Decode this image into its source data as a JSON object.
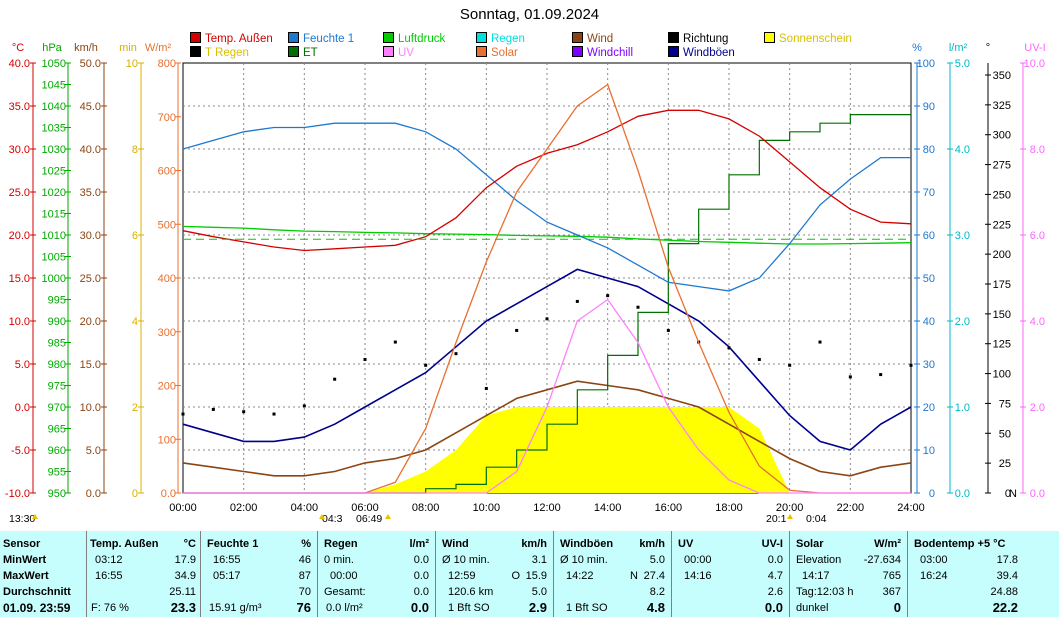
{
  "title": "Sonntag, 01.09.2024",
  "legend": [
    {
      "label": "Temp. Außen",
      "color": "#d40000"
    },
    {
      "label": "Feuchte 1",
      "color": "#1e78d0"
    },
    {
      "label": "Luftdruck",
      "color": "#00cc00"
    },
    {
      "label": "Regen",
      "color": "#00e0e0"
    },
    {
      "label": "Wind",
      "color": "#8b4513"
    },
    {
      "label": "Richtung",
      "color": "#000000"
    },
    {
      "label": "Sonnenschein",
      "color": "#ffff00"
    },
    {
      "label": "T Regen",
      "color": "#000000"
    },
    {
      "label": "ET",
      "color": "#007000"
    },
    {
      "label": "UV",
      "color": "#ff80ff"
    },
    {
      "label": "Solar",
      "color": "#e87030"
    },
    {
      "label": "Windchill",
      "color": "#8000ff"
    },
    {
      "label": "Windböen",
      "color": "#00008b"
    }
  ],
  "axes": {
    "temp": {
      "unit": "°C",
      "color": "#d40000",
      "ticks": [
        "40.0",
        "35.0",
        "30.0",
        "25.0",
        "20.0",
        "15.0",
        "10.0",
        "5.0",
        "0.0",
        "-5.0",
        "-10.0"
      ]
    },
    "hpa": {
      "unit": "hPa",
      "color": "#00aa00",
      "ticks": [
        "1050",
        "1045",
        "1040",
        "1035",
        "1030",
        "1025",
        "1020",
        "1015",
        "1010",
        "1005",
        "1000",
        "995",
        "990",
        "985",
        "980",
        "975",
        "970",
        "965",
        "960",
        "955",
        "950"
      ]
    },
    "kmh": {
      "unit": "km/h",
      "color": "#8b4513",
      "ticks": [
        "50.0",
        "45.0",
        "40.0",
        "35.0",
        "30.0",
        "25.0",
        "20.0",
        "15.0",
        "10.0",
        "5.0",
        "0.0"
      ]
    },
    "min": {
      "unit": "min",
      "color": "#d8b000",
      "ticks": [
        "10",
        "8",
        "6",
        "4",
        "2",
        "0"
      ]
    },
    "wm2": {
      "unit": "W/m²",
      "color": "#e87030",
      "ticks": [
        "800",
        "700",
        "600",
        "500",
        "400",
        "300",
        "200",
        "100",
        "0.0"
      ]
    },
    "pct": {
      "unit": "%",
      "color": "#1e78d0",
      "ticks": [
        "100",
        "90",
        "80",
        "70",
        "60",
        "50",
        "40",
        "30",
        "20",
        "10",
        "0"
      ]
    },
    "lm2": {
      "unit": "l/m²",
      "color": "#00b8c8",
      "ticks": [
        "5.0",
        "4.0",
        "3.0",
        "2.0",
        "1.0",
        "0.0"
      ]
    },
    "deg": {
      "unit": "°",
      "color": "#000000",
      "ticks": [
        "350",
        "325",
        "300",
        "275",
        "250",
        "225",
        "200",
        "175",
        "150",
        "125",
        "100",
        "75",
        "50",
        "25",
        "0"
      ],
      "extra": "N"
    },
    "uvi": {
      "unit": "UV-I",
      "color": "#ff66ff",
      "ticks": [
        "10.0",
        "8.0",
        "6.0",
        "4.0",
        "2.0",
        "0.0"
      ]
    }
  },
  "xticks": [
    "00:00",
    "02:00",
    "04:00",
    "06:00",
    "08:00",
    "10:00",
    "12:00",
    "14:00",
    "16:00",
    "18:00",
    "20:00",
    "22:00",
    "24:00"
  ],
  "markers": {
    "sunrise_left": "13:30",
    "sunrise": "04:3",
    "dawn": "06:49",
    "sunset": "20:1",
    "dusk": "0:04"
  },
  "chart_data": {
    "type": "line",
    "title": "Sonntag, 01.09.2024",
    "x": [
      "00:00",
      "01:00",
      "02:00",
      "03:00",
      "04:00",
      "05:00",
      "06:00",
      "07:00",
      "08:00",
      "09:00",
      "10:00",
      "11:00",
      "12:00",
      "13:00",
      "14:00",
      "15:00",
      "16:00",
      "17:00",
      "18:00",
      "19:00",
      "20:00",
      "21:00",
      "22:00",
      "23:00",
      "24:00"
    ],
    "series": [
      {
        "name": "Temp. Außen",
        "unit": "°C",
        "values": [
          20.5,
          19.8,
          19.2,
          18.6,
          18.2,
          18.4,
          18.6,
          18.8,
          19.8,
          22.0,
          25.5,
          28.0,
          29.5,
          30.5,
          32.0,
          33.8,
          34.5,
          34.5,
          33.5,
          31.5,
          28.5,
          25.5,
          23.0,
          21.5,
          21.3
        ]
      },
      {
        "name": "Feuchte 1",
        "unit": "%",
        "values": [
          80,
          82,
          84,
          85,
          85,
          86,
          86,
          86,
          84,
          80,
          74,
          68,
          63,
          60,
          57,
          53,
          49,
          48,
          47,
          50,
          58,
          67,
          73,
          78,
          78
        ]
      },
      {
        "name": "Luftdruck",
        "unit": "hPa",
        "values": [
          1012.0,
          1011.8,
          1011.6,
          1011.2,
          1010.9,
          1010.8,
          1010.6,
          1010.5,
          1010.3,
          1010.2,
          1010.1,
          1009.9,
          1009.8,
          1009.7,
          1009.5,
          1009.1,
          1008.8,
          1008.5,
          1008.3,
          1008.1,
          1007.9,
          1007.9,
          1008.0,
          1008.1,
          1008.2
        ]
      },
      {
        "name": "Solar",
        "unit": "W/m²",
        "values": [
          0,
          0,
          0,
          0,
          0,
          0,
          0,
          20,
          120,
          280,
          430,
          560,
          640,
          720,
          760,
          600,
          420,
          280,
          150,
          50,
          5,
          0,
          0,
          0,
          0
        ]
      },
      {
        "name": "Wind",
        "unit": "km/h",
        "values": [
          3.5,
          3.0,
          2.5,
          2.0,
          2.0,
          2.5,
          3.5,
          4.0,
          5.0,
          7.0,
          9.0,
          11.0,
          12.0,
          13.0,
          12.5,
          12.0,
          11.0,
          10.0,
          8.0,
          6.0,
          4.0,
          2.5,
          2.0,
          3.0,
          3.5
        ]
      },
      {
        "name": "Windböen",
        "unit": "km/h",
        "values": [
          8.0,
          7.0,
          6.0,
          6.0,
          6.5,
          8.0,
          10.0,
          12.0,
          14.0,
          17.0,
          20.0,
          22.0,
          24.0,
          26.0,
          25.0,
          24.0,
          22.0,
          20.0,
          17.0,
          13.0,
          9.0,
          6.0,
          5.0,
          8.0,
          10.0
        ]
      },
      {
        "name": "Richtung",
        "unit": "°",
        "values": [
          68,
          72,
          70,
          68,
          75,
          98,
          115,
          130,
          110,
          120,
          90,
          140,
          150,
          165,
          170,
          160,
          140,
          130,
          125,
          115,
          110,
          130,
          100,
          102,
          110
        ]
      },
      {
        "name": "UV",
        "unit": "UV-I",
        "values": [
          0,
          0,
          0,
          0,
          0,
          0,
          0,
          0,
          0,
          0,
          0,
          0.5,
          2.0,
          4.0,
          4.5,
          3.5,
          2.0,
          1.0,
          0.3,
          0,
          0,
          0,
          0,
          0,
          0
        ]
      },
      {
        "name": "Sonnenschein",
        "unit": "min",
        "values": [
          0,
          0,
          0,
          0,
          0,
          0,
          0,
          0.2,
          0.5,
          1.0,
          1.8,
          2.0,
          2.0,
          2.0,
          2.0,
          2.0,
          2.0,
          2.0,
          2.0,
          1.5,
          0,
          0,
          0,
          0,
          0
        ]
      },
      {
        "name": "ET",
        "unit": "l/m²",
        "values": [
          0,
          0,
          0,
          0,
          0,
          0,
          0,
          0,
          0.05,
          0.1,
          0.3,
          0.5,
          0.8,
          1.2,
          1.6,
          2.1,
          2.9,
          3.3,
          3.7,
          4.1,
          4.2,
          4.3,
          4.4,
          4.4,
          4.4
        ]
      }
    ]
  },
  "table": {
    "sensor": {
      "header": "Sensor",
      "min": "MinWert",
      "max": "MaxWert",
      "avg": "Durchschnitt",
      "date": "01.09.  23:59"
    },
    "temp": {
      "header": "Temp. Außen",
      "unit": "°C",
      "min_t": "03:12",
      "min_v": "17.9",
      "max_t": "16:55",
      "max_v": "34.9",
      "avg": "25.11",
      "f": "F: 76 %",
      "cur": "23.3"
    },
    "feuchte": {
      "header": "Feuchte 1",
      "unit": "%",
      "min_t": "16:55",
      "min_v": "46",
      "max_t": "05:17",
      "max_v": "87",
      "avg": "70",
      "abs": "15.91 g/m³",
      "cur": "76"
    },
    "regen": {
      "header": "Regen",
      "unit": "l/m²",
      "r1": "0 min.",
      "r1v": "0.0",
      "r2": "00:00",
      "r2v": "0.0",
      "r3": "Gesamt:",
      "r3v": "0.0",
      "r4": "0.0 l/m²",
      "cur": "0.0"
    },
    "wind": {
      "header": "Wind",
      "unit": "km/h",
      "r1": "Ø 10 min.",
      "r1v": "3.1",
      "r2": "12:59",
      "r2d": "O",
      "r2v": "15.9",
      "r3": "120.6 km",
      "r3v": "5.0",
      "r4": "1 Bft SO",
      "cur": "2.9"
    },
    "boeen": {
      "header": "Windböen",
      "unit": "km/h",
      "r1": "Ø 10 min.",
      "r1v": "5.0",
      "r2": "14:22",
      "r2d": "N",
      "r2v": "27.4",
      "r3v": "8.2",
      "r4": "1 Bft SO",
      "cur": "4.8"
    },
    "uv": {
      "header": "UV",
      "unit": "UV-I",
      "r1": "00:00",
      "r1v": "0.0",
      "r2": "14:16",
      "r2v": "4.7",
      "r3v": "2.6",
      "cur": "0.0"
    },
    "solar": {
      "header": "Solar",
      "unit": "W/m²",
      "r1": "Elevation",
      "r1v": "-27.634",
      "r2": "14:17",
      "r2v": "765",
      "r3": "Tag:12:03 h",
      "r3v": "367",
      "r4": "dunkel",
      "cur": "0"
    },
    "boden": {
      "header": "Bodentemp +5  °C",
      "r1": "03:00",
      "r1v": "17.8",
      "r2": "16:24",
      "r2v": "39.4",
      "r3v": "24.88",
      "cur": "22.2"
    }
  }
}
